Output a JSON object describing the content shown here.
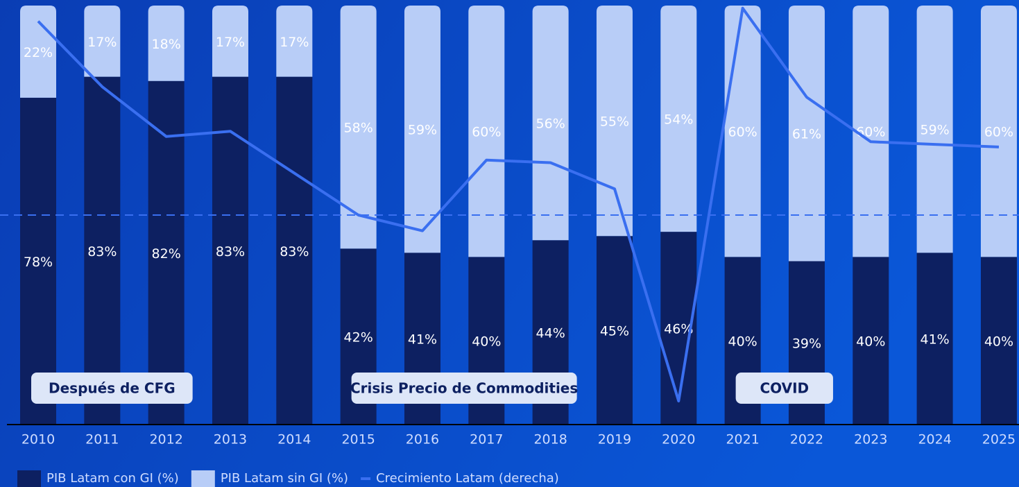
{
  "chart_data": {
    "type": "bar",
    "stacked": true,
    "categories": [
      "2010",
      "2011",
      "2012",
      "2013",
      "2014",
      "2015",
      "2016",
      "2017",
      "2018",
      "2019",
      "2020",
      "2021",
      "2022",
      "2023",
      "2024",
      "2025"
    ],
    "ylim": [
      0,
      100
    ],
    "y2lim": [
      -8,
      8
    ],
    "series": [
      {
        "name": "PIB Latam con GI (%)",
        "color": "#0d2061",
        "type": "bar",
        "values": [
          78,
          83,
          82,
          83,
          83,
          42,
          41,
          40,
          44,
          45,
          46,
          40,
          39,
          40,
          41,
          40
        ],
        "value_labels": [
          "78%",
          "83%",
          "82%",
          "83%",
          "83%",
          "42%",
          "41%",
          "40%",
          "44%",
          "45%",
          "46%",
          "40%",
          "39%",
          "40%",
          "41%",
          "40%"
        ]
      },
      {
        "name": "PIB Latam sin GI (%)",
        "color": "#b8cdf7",
        "type": "bar",
        "values": [
          22,
          17,
          18,
          17,
          17,
          58,
          59,
          60,
          56,
          55,
          54,
          60,
          61,
          60,
          59,
          60
        ],
        "value_labels": [
          "22%",
          "17%",
          "18%",
          "17%",
          "17%",
          "58%",
          "59%",
          "60%",
          "56%",
          "55%",
          "54%",
          "60%",
          "61%",
          "60%",
          "59%",
          "60%"
        ]
      },
      {
        "name": "Crecimiento Latam (derecha)",
        "color": "#3a6ff0",
        "type": "line",
        "axis": "y2",
        "values": [
          7.4,
          4.9,
          3.0,
          3.2,
          1.6,
          0.0,
          -0.6,
          2.1,
          2.0,
          1.0,
          -7.1,
          7.9,
          4.5,
          2.8,
          2.7,
          2.6
        ]
      }
    ],
    "reference_line": {
      "axis": "y2",
      "value": 0,
      "style": "dashed",
      "color": "#3a6ff0"
    },
    "annotations": [
      {
        "text": "Después de CFG",
        "start": "2010",
        "end": "2012"
      },
      {
        "text": "Crisis Precio de Commodities",
        "start": "2015",
        "end": "2018"
      },
      {
        "text": "COVID",
        "start": "2021",
        "end": "2022"
      }
    ]
  }
}
